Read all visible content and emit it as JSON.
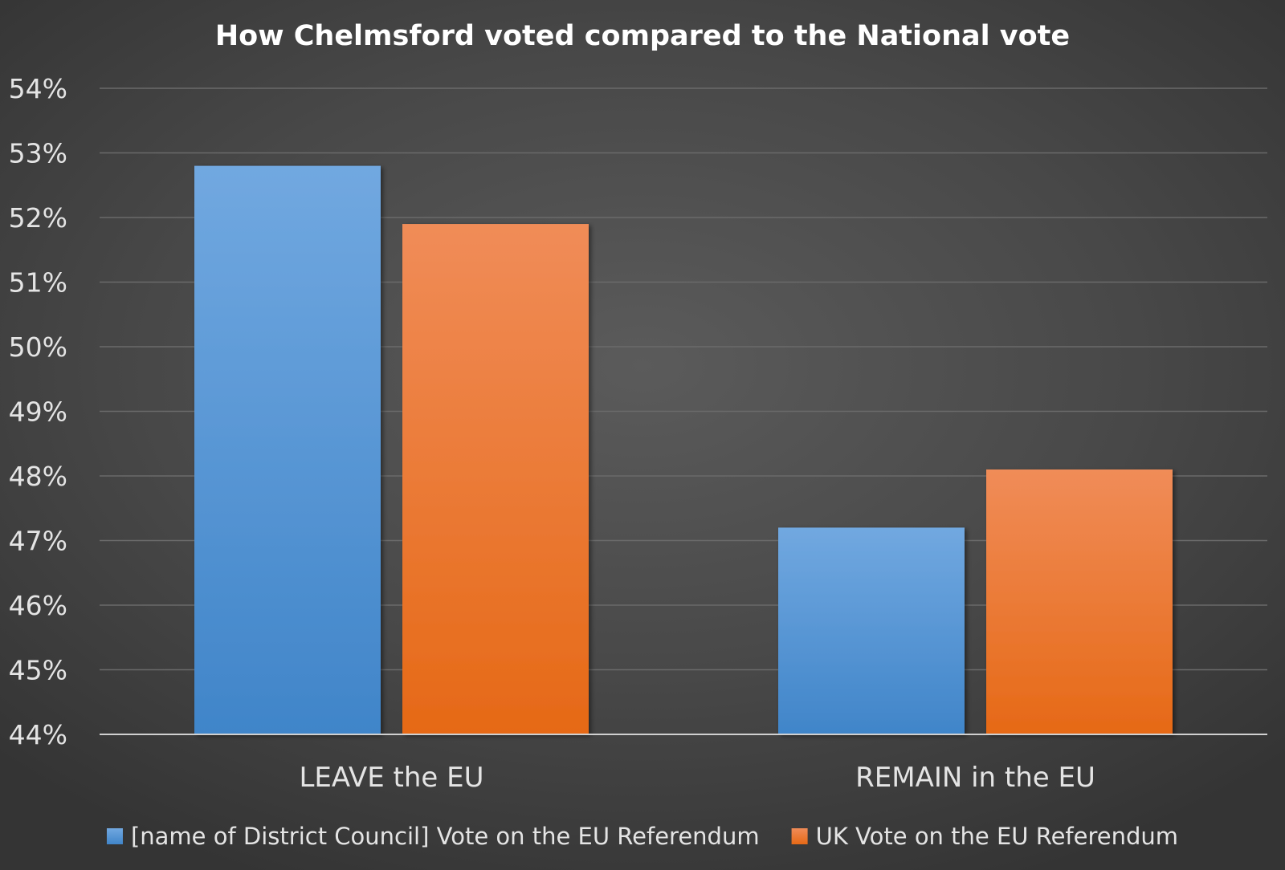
{
  "chart_data": {
    "type": "bar",
    "title": "How Chelmsford voted compared to the National vote",
    "categories": [
      "LEAVE the EU",
      "REMAIN in the EU"
    ],
    "series": [
      {
        "name": "[name of District Council] Vote on the EU Referendum",
        "values": [
          52.8,
          47.2
        ],
        "color_top": "#71a8e0",
        "color_bottom": "#4085c9"
      },
      {
        "name": "UK Vote on the EU Referendum",
        "values": [
          51.9,
          48.1
        ],
        "color_top": "#f08c58",
        "color_bottom": "#e66916"
      }
    ],
    "ylim": [
      44,
      54
    ],
    "ytick_step": 1,
    "ytick_suffix": "%",
    "grid": true,
    "legend_position": "bottom",
    "background": "#484848"
  }
}
